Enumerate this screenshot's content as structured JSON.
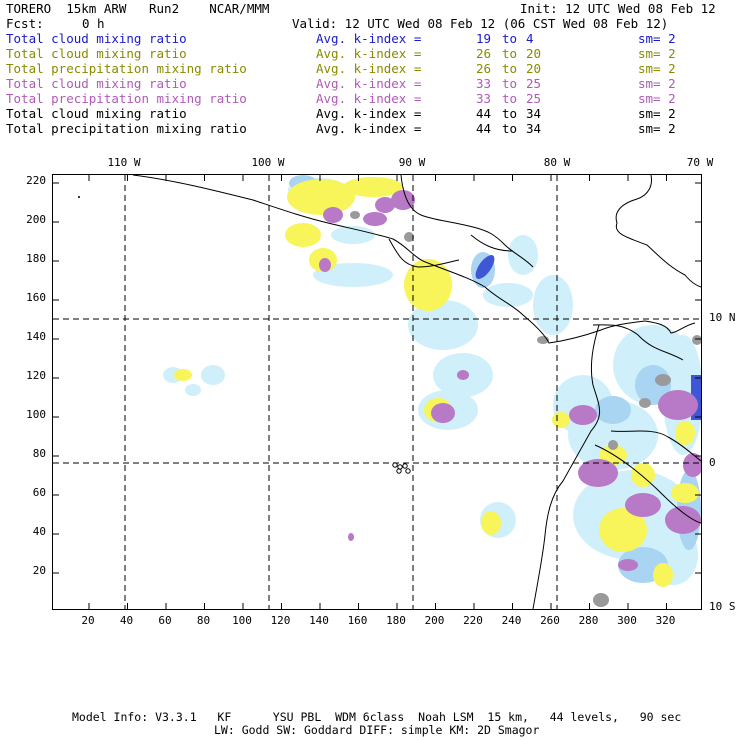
{
  "header": {
    "run_title": "TORERO  15km ARW   Run2    NCAR/MMM",
    "init": "Init: 12 UTC Wed 08 Feb 12",
    "fcst_label": "Fcst:",
    "fcst_value": "0 h",
    "valid": "Valid: 12 UTC Wed 08 Feb 12 (06 CST Wed 08 Feb 12)"
  },
  "legend": [
    {
      "field": "Total cloud mixing ratio",
      "kindex": "Avg. k-index =",
      "lo": "19",
      "to": "to",
      "hi": "4",
      "sm": "sm= 2",
      "color": "#1a1acc"
    },
    {
      "field": "Total cloud mixing ratio",
      "kindex": "Avg. k-index =",
      "lo": "26",
      "to": "to",
      "hi": "20",
      "sm": "sm= 2",
      "color": "#8a8a00"
    },
    {
      "field": "Total precipitation mixing ratio",
      "kindex": "Avg. k-index =",
      "lo": "26",
      "to": "to",
      "hi": "20",
      "sm": "sm= 2",
      "color": "#8a8a00"
    },
    {
      "field": "Total cloud mixing ratio",
      "kindex": "Avg. k-index =",
      "lo": "33",
      "to": "to",
      "hi": "25",
      "sm": "sm= 2",
      "color": "#b05ab8"
    },
    {
      "field": "Total precipitation mixing ratio",
      "kindex": "Avg. k-index =",
      "lo": "33",
      "to": "to",
      "hi": "25",
      "sm": "sm= 2",
      "color": "#b05ab8"
    },
    {
      "field": "Total cloud mixing ratio",
      "kindex": "Avg. k-index =",
      "lo": "44",
      "to": "to",
      "hi": "34",
      "sm": "sm= 2",
      "color": "#000000"
    },
    {
      "field": "Total precipitation mixing ratio",
      "kindex": "Avg. k-index =",
      "lo": "44",
      "to": "to",
      "hi": "34",
      "sm": "sm= 2",
      "color": "#000000"
    }
  ],
  "map": {
    "lon_labels": [
      "110 W",
      "100 W",
      "90 W",
      "80 W",
      "70 W"
    ],
    "lat_labels": [
      "10 N",
      "0",
      "10 S"
    ],
    "y_ticks": [
      "220",
      "200",
      "180",
      "160",
      "140",
      "120",
      "100",
      "80",
      "60",
      "40",
      "20"
    ],
    "x_ticks": [
      "20",
      "40",
      "60",
      "80",
      "100",
      "120",
      "140",
      "160",
      "180",
      "200",
      "220",
      "240",
      "260",
      "280",
      "300",
      "320"
    ],
    "colors": {
      "blue_light": "#cfeffa",
      "blue_mid": "#a9d4f2",
      "blue_dark": "#3f57d6",
      "yellow": "#f7f55a",
      "purple": "#b879c6",
      "gray": "#9a9a9a",
      "coast": "#000000"
    }
  },
  "footer": {
    "line1": "Model Info: V3.3.1   KF      YSU PBL  WDM 6class  Noah LSM  15 km,   44 levels,   90 sec",
    "line2": "LW: Godd SW: Goddard DIFF: simple KM: 2D Smagor"
  }
}
